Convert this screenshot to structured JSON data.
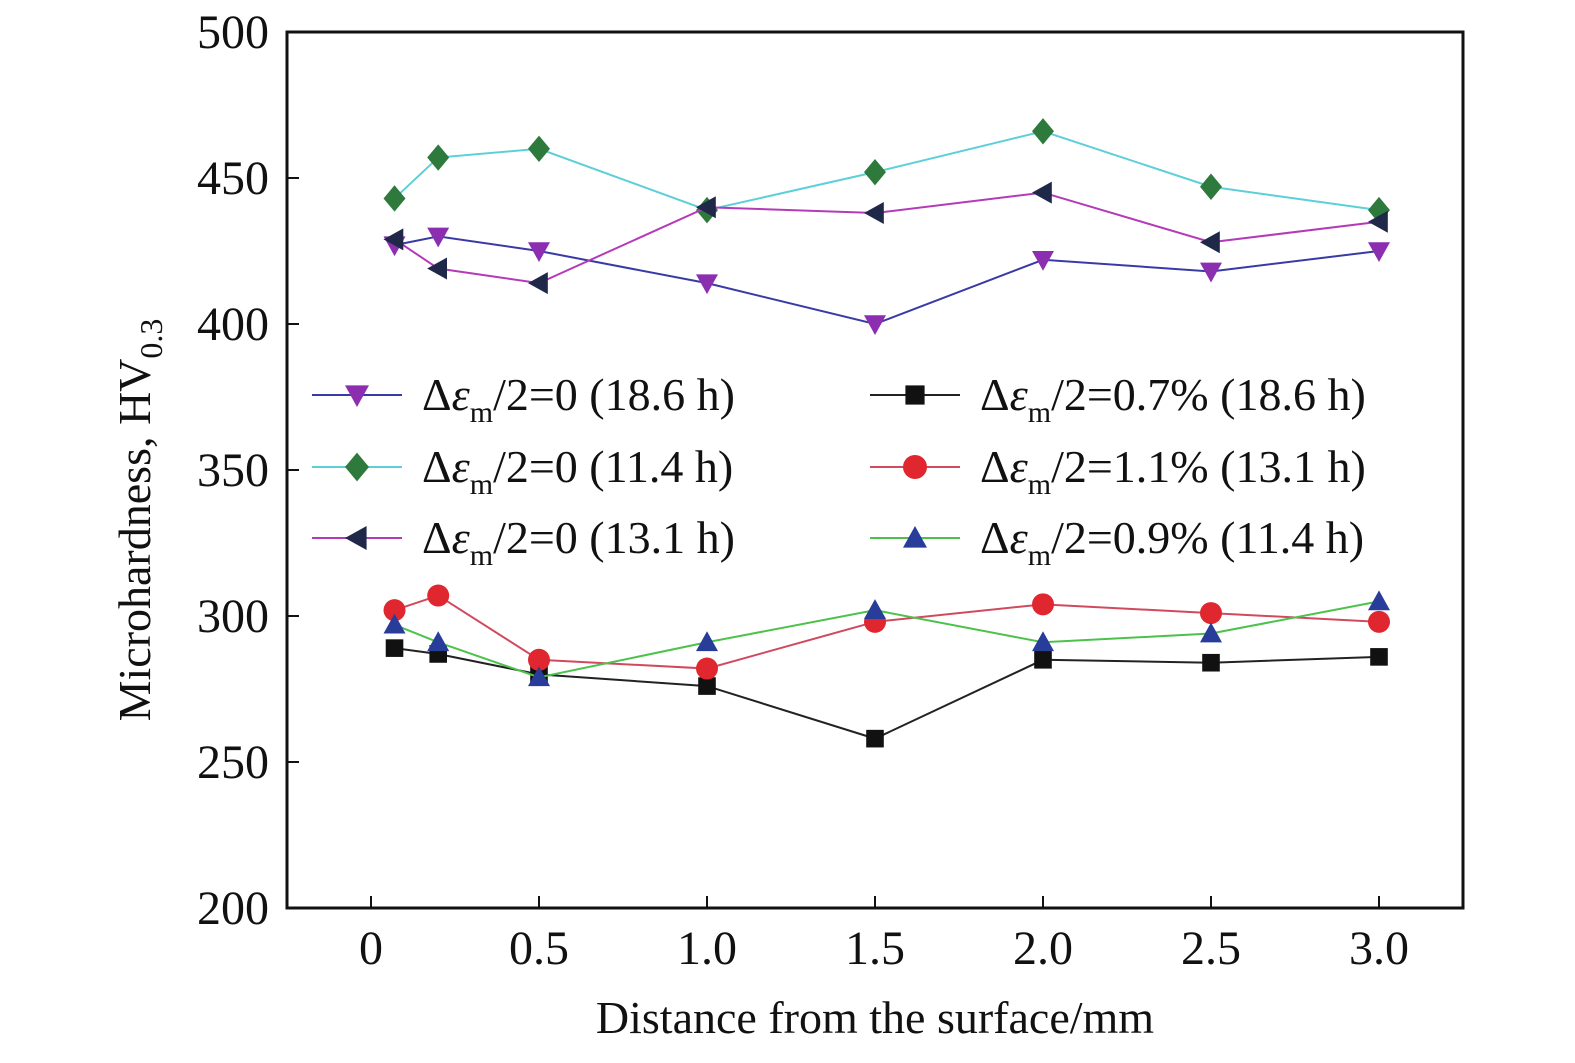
{
  "chart_data": {
    "type": "line",
    "xlabel": "Distance from the surface/mm",
    "ylabel": "Microhardness, HV",
    "ylabel_sub": "0.3",
    "xlim": [
      -0.25,
      3.25
    ],
    "ylim": [
      200,
      500
    ],
    "x_ticks": [
      0,
      0.5,
      1.0,
      1.5,
      2.0,
      2.5,
      3.0
    ],
    "x_tick_labels": [
      "0",
      "0.5",
      "1.0",
      "1.5",
      "2.0",
      "2.5",
      "3.0"
    ],
    "y_ticks": [
      200,
      250,
      300,
      350,
      400,
      450,
      500
    ],
    "y_tick_labels": [
      "200",
      "250",
      "300",
      "350",
      "400",
      "450",
      "500"
    ],
    "grid": false,
    "legend_placement": "center",
    "x": [
      0.07,
      0.2,
      0.5,
      1.0,
      1.5,
      2.0,
      2.5,
      3.0
    ],
    "series": [
      {
        "name": "Δεm/2=0 (18.6 h)",
        "legend": {
          "prefix": "Δ",
          "eps": "ε",
          "sub": "m",
          "rest": "/2=0 (18.6 h)"
        },
        "values": [
          427,
          430,
          425,
          414,
          400,
          422,
          418,
          425
        ],
        "line_color": "#3a3aa6",
        "marker": "triangle-down",
        "marker_color": "#8b2fb0"
      },
      {
        "name": "Δεm/2=0 (11.4 h)",
        "legend": {
          "prefix": "Δ",
          "eps": "ε",
          "sub": "m",
          "rest": "/2=0 (11.4 h)"
        },
        "values": [
          443,
          457,
          460,
          439,
          452,
          466,
          447,
          439
        ],
        "line_color": "#5ccfd8",
        "marker": "diamond",
        "marker_color": "#2e7a3c"
      },
      {
        "name": "Δεm/2=0 (13.1 h)",
        "legend": {
          "prefix": "Δ",
          "eps": "ε",
          "sub": "m",
          "rest": "/2=0 (13.1 h)"
        },
        "values": [
          429,
          419,
          414,
          440,
          438,
          445,
          428,
          435
        ],
        "line_color": "#b43ab8",
        "marker": "triangle-left",
        "marker_color": "#1f2848"
      },
      {
        "name": "Δεm/2=0.7% (18.6 h)",
        "legend": {
          "prefix": "Δ",
          "eps": "ε",
          "sub": "m",
          "rest": "/2=0.7% (18.6 h)"
        },
        "values": [
          289,
          287,
          280,
          276,
          258,
          285,
          284,
          286
        ],
        "line_color": "#222222",
        "marker": "square",
        "marker_color": "#111111"
      },
      {
        "name": "Δεm/2=1.1% (13.1 h)",
        "legend": {
          "prefix": "Δ",
          "eps": "ε",
          "sub": "m",
          "rest": "/2=1.1% (13.1 h)"
        },
        "values": [
          302,
          307,
          285,
          282,
          298,
          304,
          301,
          298
        ],
        "line_color": "#d04a5e",
        "marker": "circle",
        "marker_color": "#e0262e"
      },
      {
        "name": "Δεm/2=0.9% (11.4 h)",
        "legend": {
          "prefix": "Δ",
          "eps": "ε",
          "sub": "m",
          "rest": "/2=0.9% (11.4 h)"
        },
        "values": [
          297,
          291,
          279,
          291,
          302,
          291,
          294,
          305
        ],
        "line_color": "#4cc24c",
        "marker": "triangle-up",
        "marker_color": "#283c9a"
      }
    ]
  }
}
